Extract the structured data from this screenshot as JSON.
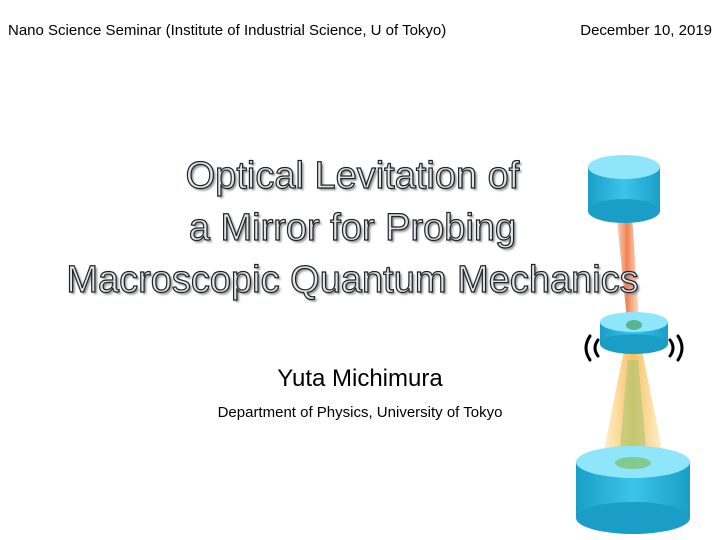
{
  "header": {
    "event": "Nano Science Seminar (Institute of Industrial Science, U of Tokyo)",
    "date": "December 10, 2019"
  },
  "title": [
    "Optical Levitation of",
    "a Mirror for Probing",
    "Macroscopic Quantum Mechanics"
  ],
  "author": "Yuta Michimura",
  "affiliation": "Department of Physics, University of Tokyo"
}
